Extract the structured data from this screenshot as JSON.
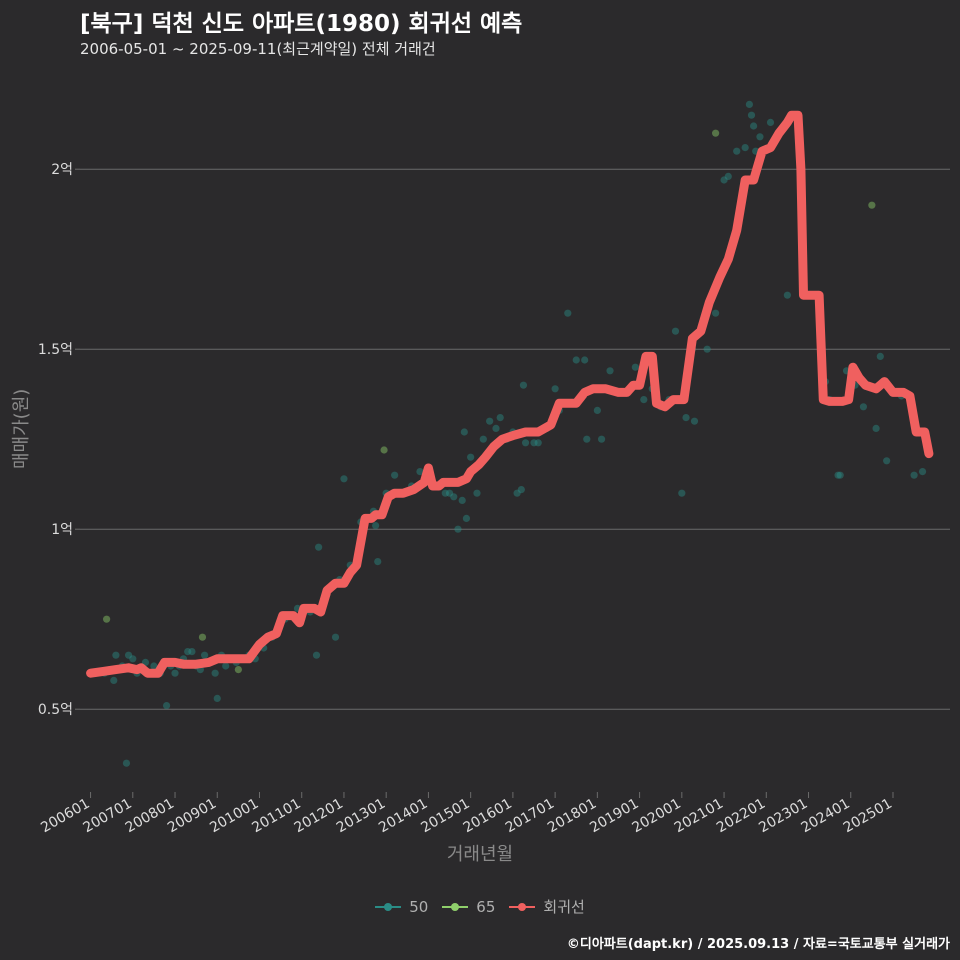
{
  "chart_data": {
    "type": "scatter",
    "title": "[북구] 덕천 신도 아파트(1980) 회귀선 예측",
    "subtitle": "2006-05-01 ~ 2025-09-11(최근계약일) 전체 거래건",
    "xlabel": "거래년월",
    "ylabel": "매매가(원)",
    "caption": "©디아파트(dapt.kr) / 2025.09.13 / 자료=국토교통부 실거래가",
    "x_range": [
      2005.75,
      2026.35
    ],
    "ylim": [
      0.27,
      2.27
    ],
    "y_ticks": [
      0.5,
      1.0,
      1.5,
      2.0
    ],
    "y_tick_labels": [
      "0.5억",
      "1억",
      "1.5억",
      "2억"
    ],
    "x_ticks": [
      2006,
      2007,
      2008,
      2009,
      2010,
      2011,
      2012,
      2013,
      2014,
      2015,
      2016,
      2017,
      2018,
      2019,
      2020,
      2021,
      2022,
      2023,
      2024,
      2025
    ],
    "x_tick_labels": [
      "200601",
      "200701",
      "200801",
      "200901",
      "201001",
      "201101",
      "201201",
      "201301",
      "201401",
      "201501",
      "201601",
      "201701",
      "201801",
      "201901",
      "202001",
      "202101",
      "202201",
      "202301",
      "202401",
      "202501"
    ],
    "colors": {
      "s50": "#2a8c86",
      "s65": "#8fcf6b",
      "trend": "#f0605f",
      "grid": "#6b6b6b",
      "axis_text": "#dcdcdc"
    },
    "series": [
      {
        "name": "50",
        "type": "points",
        "points": [
          [
            2006.33,
            0.6
          ],
          [
            2006.45,
            0.61
          ],
          [
            2006.55,
            0.58
          ],
          [
            2006.6,
            0.65
          ],
          [
            2006.75,
            0.62
          ],
          [
            2006.85,
            0.35
          ],
          [
            2006.9,
            0.65
          ],
          [
            2007.0,
            0.64
          ],
          [
            2007.1,
            0.6
          ],
          [
            2007.3,
            0.63
          ],
          [
            2007.5,
            0.62
          ],
          [
            2007.65,
            0.6
          ],
          [
            2007.8,
            0.51
          ],
          [
            2007.9,
            0.62
          ],
          [
            2008.0,
            0.6
          ],
          [
            2008.1,
            0.62
          ],
          [
            2008.2,
            0.64
          ],
          [
            2008.3,
            0.66
          ],
          [
            2008.4,
            0.66
          ],
          [
            2008.5,
            0.62
          ],
          [
            2008.6,
            0.61
          ],
          [
            2008.7,
            0.65
          ],
          [
            2008.85,
            0.63
          ],
          [
            2008.95,
            0.6
          ],
          [
            2009.0,
            0.53
          ],
          [
            2009.1,
            0.65
          ],
          [
            2009.2,
            0.62
          ],
          [
            2009.3,
            0.64
          ],
          [
            2009.45,
            0.63
          ],
          [
            2009.6,
            0.64
          ],
          [
            2009.75,
            0.65
          ],
          [
            2009.9,
            0.64
          ],
          [
            2010.1,
            0.67
          ],
          [
            2010.3,
            0.7
          ],
          [
            2010.45,
            0.72
          ],
          [
            2010.6,
            0.75
          ],
          [
            2010.75,
            0.76
          ],
          [
            2010.9,
            0.78
          ],
          [
            2011.0,
            0.75
          ],
          [
            2011.2,
            0.77
          ],
          [
            2011.35,
            0.65
          ],
          [
            2011.4,
            0.95
          ],
          [
            2011.6,
            0.82
          ],
          [
            2011.8,
            0.7
          ],
          [
            2011.9,
            0.86
          ],
          [
            2012.0,
            1.14
          ],
          [
            2012.15,
            0.9
          ],
          [
            2012.4,
            1.02
          ],
          [
            2012.6,
            1.03
          ],
          [
            2012.7,
            1.05
          ],
          [
            2012.75,
            1.01
          ],
          [
            2012.8,
            0.91
          ],
          [
            2013.0,
            1.1
          ],
          [
            2013.2,
            1.15
          ],
          [
            2013.4,
            1.1
          ],
          [
            2013.6,
            1.12
          ],
          [
            2013.8,
            1.16
          ],
          [
            2014.0,
            1.15
          ],
          [
            2014.2,
            1.12
          ],
          [
            2014.4,
            1.1
          ],
          [
            2014.5,
            1.1
          ],
          [
            2014.6,
            1.09
          ],
          [
            2014.7,
            1.0
          ],
          [
            2014.8,
            1.08
          ],
          [
            2014.85,
            1.27
          ],
          [
            2014.9,
            1.03
          ],
          [
            2015.0,
            1.2
          ],
          [
            2015.15,
            1.1
          ],
          [
            2015.3,
            1.25
          ],
          [
            2015.45,
            1.3
          ],
          [
            2015.6,
            1.28
          ],
          [
            2015.7,
            1.31
          ],
          [
            2015.85,
            1.25
          ],
          [
            2016.0,
            1.27
          ],
          [
            2016.1,
            1.1
          ],
          [
            2016.2,
            1.11
          ],
          [
            2016.25,
            1.4
          ],
          [
            2016.3,
            1.24
          ],
          [
            2016.5,
            1.24
          ],
          [
            2016.6,
            1.24
          ],
          [
            2016.8,
            1.28
          ],
          [
            2017.0,
            1.39
          ],
          [
            2017.1,
            1.33
          ],
          [
            2017.3,
            1.6
          ],
          [
            2017.4,
            1.35
          ],
          [
            2017.5,
            1.47
          ],
          [
            2017.7,
            1.47
          ],
          [
            2017.75,
            1.25
          ],
          [
            2018.0,
            1.33
          ],
          [
            2018.1,
            1.25
          ],
          [
            2018.3,
            1.44
          ],
          [
            2018.5,
            1.38
          ],
          [
            2018.7,
            1.38
          ],
          [
            2018.9,
            1.45
          ],
          [
            2019.1,
            1.36
          ],
          [
            2019.3,
            1.39
          ],
          [
            2019.5,
            1.34
          ],
          [
            2019.7,
            1.36
          ],
          [
            2019.85,
            1.55
          ],
          [
            2020.0,
            1.1
          ],
          [
            2020.1,
            1.31
          ],
          [
            2020.25,
            1.5
          ],
          [
            2020.3,
            1.3
          ],
          [
            2020.6,
            1.5
          ],
          [
            2020.8,
            1.6
          ],
          [
            2021.0,
            1.97
          ],
          [
            2021.1,
            1.98
          ],
          [
            2021.3,
            2.05
          ],
          [
            2021.5,
            2.06
          ],
          [
            2021.6,
            2.18
          ],
          [
            2021.65,
            2.15
          ],
          [
            2021.7,
            2.12
          ],
          [
            2021.75,
            2.05
          ],
          [
            2021.85,
            2.09
          ],
          [
            2022.1,
            2.13
          ],
          [
            2022.3,
            2.1
          ],
          [
            2022.5,
            1.65
          ],
          [
            2022.9,
            1.65
          ],
          [
            2023.2,
            1.65
          ],
          [
            2023.4,
            1.41
          ],
          [
            2023.5,
            1.36
          ],
          [
            2023.7,
            1.15
          ],
          [
            2023.75,
            1.15
          ],
          [
            2023.9,
            1.44
          ],
          [
            2024.1,
            1.4
          ],
          [
            2024.3,
            1.34
          ],
          [
            2024.6,
            1.28
          ],
          [
            2024.7,
            1.48
          ],
          [
            2024.85,
            1.19
          ],
          [
            2025.2,
            1.37
          ],
          [
            2025.5,
            1.15
          ],
          [
            2025.7,
            1.16
          ]
        ]
      },
      {
        "name": "65",
        "type": "points",
        "points": [
          [
            2006.38,
            0.75
          ],
          [
            2008.65,
            0.7
          ],
          [
            2009.5,
            0.61
          ],
          [
            2012.95,
            1.22
          ],
          [
            2020.8,
            2.1
          ],
          [
            2024.5,
            1.9
          ]
        ]
      },
      {
        "name": "회귀선",
        "type": "line",
        "points": [
          [
            2006.0,
            0.6
          ],
          [
            2006.3,
            0.605
          ],
          [
            2006.6,
            0.61
          ],
          [
            2006.9,
            0.615
          ],
          [
            2007.1,
            0.61
          ],
          [
            2007.2,
            0.615
          ],
          [
            2007.35,
            0.6
          ],
          [
            2007.6,
            0.6
          ],
          [
            2007.75,
            0.63
          ],
          [
            2008.0,
            0.63
          ],
          [
            2008.2,
            0.625
          ],
          [
            2008.5,
            0.625
          ],
          [
            2008.8,
            0.63
          ],
          [
            2009.0,
            0.64
          ],
          [
            2009.5,
            0.64
          ],
          [
            2009.75,
            0.64
          ],
          [
            2010.0,
            0.68
          ],
          [
            2010.2,
            0.7
          ],
          [
            2010.4,
            0.71
          ],
          [
            2010.55,
            0.76
          ],
          [
            2010.8,
            0.76
          ],
          [
            2010.95,
            0.74
          ],
          [
            2011.05,
            0.78
          ],
          [
            2011.3,
            0.78
          ],
          [
            2011.45,
            0.77
          ],
          [
            2011.6,
            0.83
          ],
          [
            2011.8,
            0.85
          ],
          [
            2012.0,
            0.85
          ],
          [
            2012.15,
            0.88
          ],
          [
            2012.3,
            0.9
          ],
          [
            2012.5,
            1.03
          ],
          [
            2012.65,
            1.03
          ],
          [
            2012.75,
            1.04
          ],
          [
            2012.9,
            1.04
          ],
          [
            2013.05,
            1.09
          ],
          [
            2013.2,
            1.1
          ],
          [
            2013.4,
            1.1
          ],
          [
            2013.65,
            1.11
          ],
          [
            2013.9,
            1.13
          ],
          [
            2014.0,
            1.17
          ],
          [
            2014.1,
            1.12
          ],
          [
            2014.25,
            1.12
          ],
          [
            2014.35,
            1.13
          ],
          [
            2014.7,
            1.13
          ],
          [
            2014.9,
            1.14
          ],
          [
            2015.0,
            1.16
          ],
          [
            2015.2,
            1.18
          ],
          [
            2015.35,
            1.2
          ],
          [
            2015.55,
            1.23
          ],
          [
            2015.75,
            1.25
          ],
          [
            2016.0,
            1.26
          ],
          [
            2016.3,
            1.27
          ],
          [
            2016.6,
            1.27
          ],
          [
            2016.9,
            1.29
          ],
          [
            2017.1,
            1.35
          ],
          [
            2017.3,
            1.35
          ],
          [
            2017.5,
            1.35
          ],
          [
            2017.7,
            1.38
          ],
          [
            2017.9,
            1.39
          ],
          [
            2018.2,
            1.39
          ],
          [
            2018.5,
            1.38
          ],
          [
            2018.7,
            1.38
          ],
          [
            2018.85,
            1.4
          ],
          [
            2019.0,
            1.4
          ],
          [
            2019.15,
            1.48
          ],
          [
            2019.3,
            1.48
          ],
          [
            2019.4,
            1.35
          ],
          [
            2019.6,
            1.34
          ],
          [
            2019.8,
            1.36
          ],
          [
            2020.05,
            1.36
          ],
          [
            2020.25,
            1.53
          ],
          [
            2020.45,
            1.55
          ],
          [
            2020.65,
            1.63
          ],
          [
            2020.9,
            1.7
          ],
          [
            2021.1,
            1.75
          ],
          [
            2021.3,
            1.83
          ],
          [
            2021.5,
            1.97
          ],
          [
            2021.7,
            1.97
          ],
          [
            2021.9,
            2.05
          ],
          [
            2022.1,
            2.06
          ],
          [
            2022.3,
            2.1
          ],
          [
            2022.5,
            2.13
          ],
          [
            2022.6,
            2.15
          ],
          [
            2022.75,
            2.15
          ],
          [
            2022.82,
            2.0
          ],
          [
            2022.88,
            1.65
          ],
          [
            2023.0,
            1.65
          ],
          [
            2023.25,
            1.65
          ],
          [
            2023.35,
            1.36
          ],
          [
            2023.5,
            1.355
          ],
          [
            2023.8,
            1.355
          ],
          [
            2023.95,
            1.36
          ],
          [
            2024.05,
            1.45
          ],
          [
            2024.2,
            1.42
          ],
          [
            2024.35,
            1.4
          ],
          [
            2024.6,
            1.39
          ],
          [
            2024.8,
            1.41
          ],
          [
            2025.0,
            1.38
          ],
          [
            2025.25,
            1.38
          ],
          [
            2025.4,
            1.37
          ],
          [
            2025.55,
            1.27
          ],
          [
            2025.75,
            1.27
          ],
          [
            2025.85,
            1.21
          ]
        ]
      }
    ],
    "legend": [
      {
        "name": "50",
        "color": "#2a8c86",
        "kind": "point-line"
      },
      {
        "name": "65",
        "color": "#8fcf6b",
        "kind": "point-line"
      },
      {
        "name": "회귀선",
        "color": "#f0605f",
        "kind": "point-line"
      }
    ]
  }
}
